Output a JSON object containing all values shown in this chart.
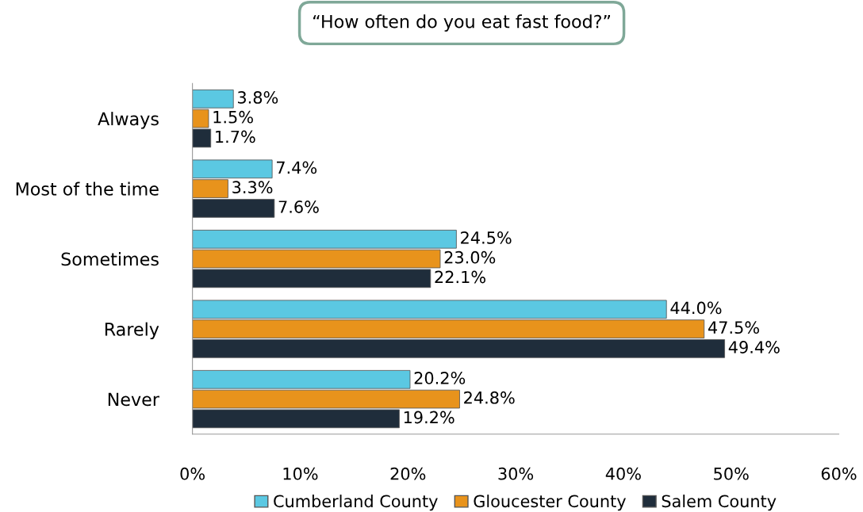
{
  "chart_data": {
    "type": "bar",
    "orientation": "horizontal",
    "title": "“How often do you eat fast food?”",
    "categories": [
      "Always",
      "Most of the time",
      "Sometimes",
      "Rarely",
      "Never"
    ],
    "series": [
      {
        "name": "Cumberland County",
        "color": "#5bc8e2",
        "values": [
          3.8,
          7.4,
          24.5,
          44.0,
          20.2
        ],
        "value_labels": [
          "3.8%",
          "7.4%",
          "24.5%",
          "44.0%",
          "20.2%"
        ]
      },
      {
        "name": "Gloucester County",
        "color": "#e8931c",
        "values": [
          1.5,
          3.3,
          23.0,
          47.5,
          24.8
        ],
        "value_labels": [
          "1.5%",
          "3.3%",
          "23.0%",
          "47.5%",
          "24.8%"
        ]
      },
      {
        "name": "Salem County",
        "color": "#1f2d3b",
        "values": [
          1.7,
          7.6,
          22.1,
          49.4,
          19.2
        ],
        "value_labels": [
          "1.7%",
          "7.6%",
          "22.1%",
          "49.4%",
          "19.2%"
        ]
      }
    ],
    "xlim": [
      0,
      60
    ],
    "xticks": [
      {
        "value": 0,
        "label": "0%"
      },
      {
        "value": 10,
        "label": "10%"
      },
      {
        "value": 20,
        "label": "20%"
      },
      {
        "value": 30,
        "label": "30%"
      },
      {
        "value": 40,
        "label": "40%"
      },
      {
        "value": 50,
        "label": "50%"
      },
      {
        "value": 60,
        "label": "60%"
      }
    ],
    "grid": false,
    "legend": "bottom"
  }
}
